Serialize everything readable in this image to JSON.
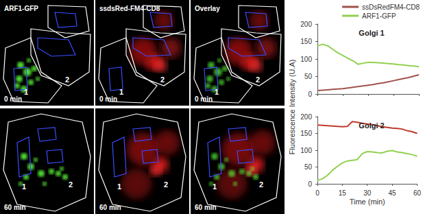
{
  "images": {
    "columns": [
      "ARF1-GFP",
      "ssdsRed-FM4-CD8",
      "Overlay"
    ],
    "rows": [
      "0 min",
      "60 min"
    ],
    "region_labels": [
      "1",
      "2"
    ]
  },
  "chart_data": [
    {
      "type": "line",
      "title": "Golgi 1",
      "ylabel": "Fluorescence Intensity (U.A)",
      "x": [
        0,
        3,
        6,
        9,
        12,
        15,
        18,
        21,
        24,
        27,
        30,
        33,
        36,
        39,
        42,
        45,
        48,
        51,
        54,
        57,
        60
      ],
      "series": [
        {
          "name": "ssDsRedFM4-CD8",
          "color": "#a0524d",
          "values": [
            10,
            11,
            12,
            13,
            14,
            15,
            17,
            19,
            21,
            23,
            25,
            27,
            30,
            32,
            35,
            38,
            41,
            44,
            47,
            51,
            55
          ]
        },
        {
          "name": "ARF1-GFP",
          "color": "#92d050",
          "values": [
            137,
            142,
            138,
            128,
            118,
            110,
            102,
            95,
            85,
            88,
            90,
            90,
            89,
            88,
            87,
            86,
            84,
            83,
            81,
            80,
            78
          ]
        }
      ],
      "xlim": [
        0,
        60
      ],
      "xticks": [
        0,
        15,
        30,
        45,
        60
      ],
      "ylim": [
        0,
        200
      ],
      "yticks": [
        0,
        50,
        100,
        150,
        200
      ],
      "grid": false,
      "legend": "top-right",
      "tick_labels": "y"
    },
    {
      "type": "line",
      "title": "Golgi 2",
      "xlabel": "Time (min)",
      "x": [
        0,
        3,
        6,
        9,
        12,
        15,
        18,
        21,
        24,
        27,
        30,
        33,
        36,
        39,
        42,
        45,
        48,
        51,
        54,
        57,
        60
      ],
      "series": [
        {
          "name": "ssDsRedFM4-CD8",
          "color": "#c0392b",
          "values": [
            175,
            174,
            173,
            172,
            171,
            170,
            171,
            185,
            183,
            180,
            178,
            176,
            173,
            170,
            168,
            166,
            165,
            163,
            158,
            155,
            150
          ]
        },
        {
          "name": "ARF1-GFP",
          "color": "#92d050",
          "values": [
            10,
            15,
            25,
            40,
            52,
            62,
            68,
            70,
            72,
            90,
            96,
            95,
            93,
            92,
            97,
            99,
            95,
            93,
            90,
            87,
            82
          ]
        }
      ],
      "xlim": [
        0,
        60
      ],
      "xticks": [
        0,
        15,
        30,
        45,
        60
      ],
      "ylim": [
        0,
        200
      ],
      "yticks": [
        0,
        50,
        100,
        150,
        200
      ],
      "grid": false
    }
  ]
}
